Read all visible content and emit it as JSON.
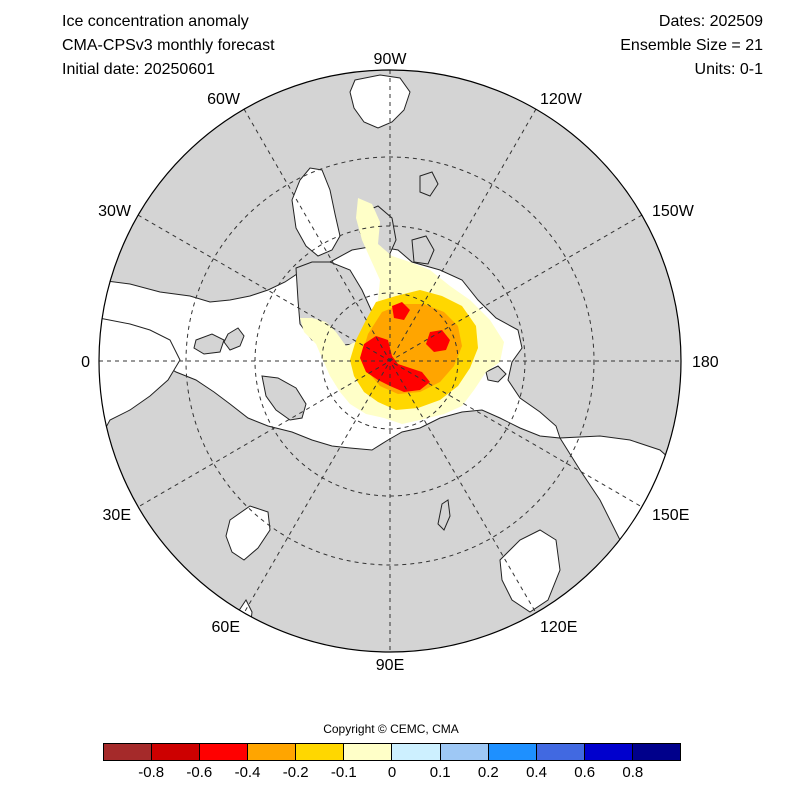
{
  "header": {
    "title": "Ice concentration anomaly",
    "model": "CMA-CPSv3 monthly forecast",
    "initial_date": "Initial date: 20250601",
    "dates": "Dates: 202509",
    "ensemble": "Ensemble Size = 21",
    "units": "Units: 0-1"
  },
  "map": {
    "projection": "north polar stereographic",
    "land_color": "#d4d4d4",
    "ocean_color": "#ffffff",
    "longitude_labels": {
      "lon_90w": "90W",
      "lon_120w": "120W",
      "lon_150w": "150W",
      "lon_180": "180",
      "lon_150e": "150E",
      "lon_120e": "120E",
      "lon_90e": "90E",
      "lon_60e": "60E",
      "lon_30e": "30E",
      "lon_0": "0",
      "lon_30w": "30W",
      "lon_60w": "60W"
    },
    "anomaly_region": "negative anomalies (-0.1 to below -0.4) centered near the pole, strongest toward the Pacific side"
  },
  "copyright": "Copyright © CEMC, CMA",
  "colorbar": {
    "colors": [
      "#a52a2a",
      "#cd0000",
      "#ff0000",
      "#ffa500",
      "#ffd700",
      "#ffffc8",
      "#cdf0ff",
      "#9ec8f5",
      "#1e90ff",
      "#4169e1",
      "#0000cd",
      "#00008b"
    ],
    "tick_labels": [
      "-0.8",
      "-0.6",
      "-0.4",
      "-0.2",
      "-0.1",
      "0",
      "0.1",
      "0.2",
      "0.4",
      "0.6",
      "0.8"
    ]
  }
}
